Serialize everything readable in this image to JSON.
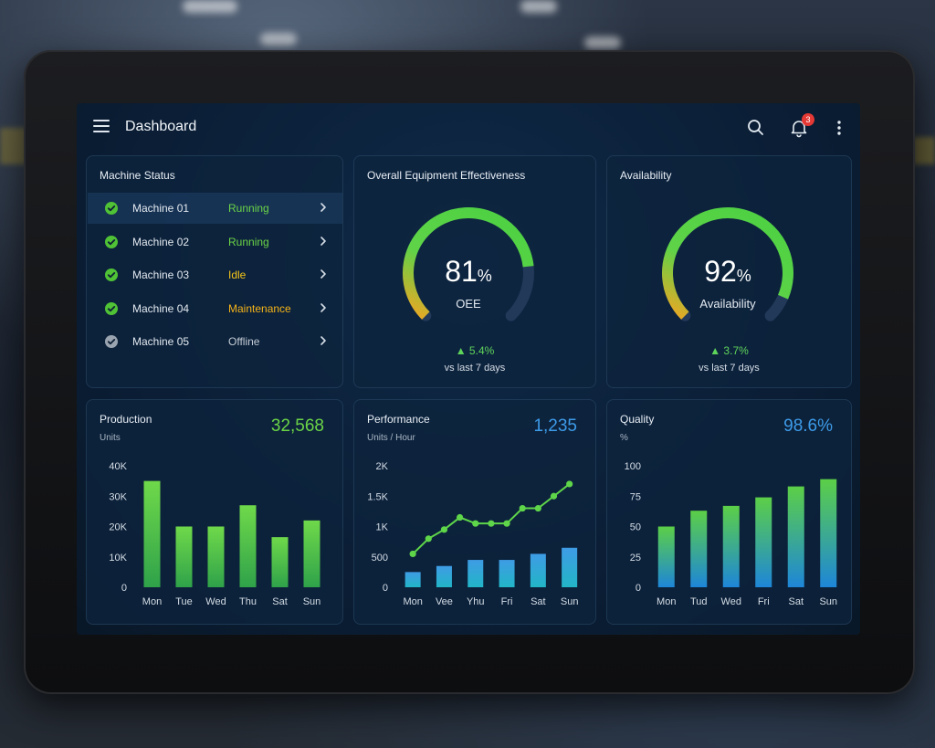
{
  "header": {
    "title": "Dashboard",
    "notification_count": "3"
  },
  "machine_status": {
    "title": "Machine Status",
    "items": [
      {
        "name": "Machine 01",
        "status": "Running",
        "status_color": "#6bd446",
        "icon_color": "#4fc236"
      },
      {
        "name": "Machine 02",
        "status": "Running",
        "status_color": "#6bd446",
        "icon_color": "#4fc236"
      },
      {
        "name": "Machine 03",
        "status": "Idle",
        "status_color": "#f5c518",
        "icon_color": "#4fc236"
      },
      {
        "name": "Machine 04",
        "status": "Maintenance",
        "status_color": "#f5b318",
        "icon_color": "#4fc236"
      },
      {
        "name": "Machine 05",
        "status": "Offline",
        "status_color": "#c5ccd5",
        "icon_color": "#9aa4b0"
      }
    ]
  },
  "oee": {
    "title": "Overall Equipment Effectiveness",
    "value": "81",
    "unit": "%",
    "label": "OEE",
    "level": 0.81,
    "delta": "▲ 5.4%",
    "delta_sub": "vs last 7 days"
  },
  "availability": {
    "title": "Availability",
    "value": "92",
    "unit": "%",
    "label": "Availability",
    "level": 0.92,
    "delta": "▲ 3.7%",
    "delta_sub": "vs last 7 days"
  },
  "production": {
    "title": "Production",
    "subtitle": "Units",
    "total": "32,568",
    "total_color": "#6bd446"
  },
  "performance": {
    "title": "Performance",
    "subtitle": "Units / Hour",
    "total": "1,235",
    "total_color": "#3d9be9"
  },
  "quality": {
    "title": "Quality",
    "subtitle": "%",
    "total": "98.6%",
    "total_color": "#3d9be9"
  },
  "chart_data": [
    {
      "type": "bar",
      "categories": [
        "Mon",
        "Tue",
        "Wed",
        "Thu",
        "Sat",
        "Sun"
      ],
      "values": [
        35000,
        20000,
        20000,
        27000,
        16500,
        22000
      ],
      "yticks": [
        "0",
        "10K",
        "20K",
        "30K",
        "40K"
      ],
      "ylim": [
        0,
        40000
      ],
      "colors": [
        "#6fd94a",
        "#2fa24a"
      ]
    },
    {
      "type": "bar+line",
      "categories": [
        "Mon",
        "Vee",
        "Yhu",
        "Fri",
        "Sat",
        "Sun"
      ],
      "bar_values": [
        250,
        350,
        450,
        450,
        550,
        650
      ],
      "line_x": [
        0,
        0.5,
        1,
        1.5,
        2,
        2.5,
        3,
        3.5,
        4,
        4.5,
        5
      ],
      "line_values": [
        550,
        800,
        950,
        1150,
        1050,
        1050,
        1050,
        1300,
        1300,
        1500,
        1700
      ],
      "yticks": [
        "0",
        "500",
        "1K",
        "1.5K",
        "2K"
      ],
      "ylim": [
        0,
        2000
      ],
      "colors": [
        "#3f9ce5",
        "#22b5c7",
        "#5fd64a"
      ]
    },
    {
      "type": "bar",
      "categories": [
        "Mon",
        "Tud",
        "Wed",
        "Fri",
        "Sat",
        "Sun"
      ],
      "values": [
        50,
        63,
        67,
        74,
        83,
        89
      ],
      "yticks": [
        "0",
        "25",
        "50",
        "75",
        "100"
      ],
      "ylim": [
        0,
        100
      ],
      "colors": [
        "#5ccf47",
        "#1e86d8"
      ]
    }
  ]
}
